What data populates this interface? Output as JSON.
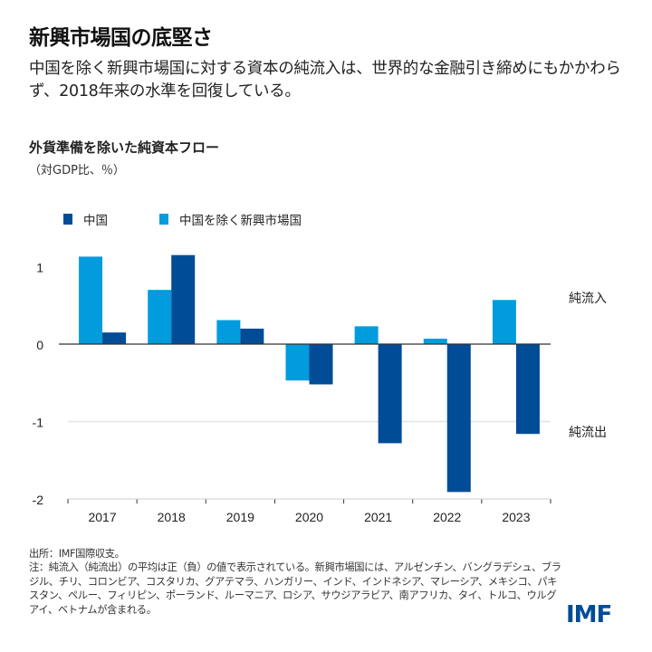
{
  "title": "新興市場国の底堅さ",
  "subtitle": "中国を除く新興市場国に対する資本の純流入は、世界的な金融引き締めにもかかわらず、2018年来の水準を回復している。",
  "chart_data": {
    "type": "bar",
    "title": "外貨準備を除いた純資本フロー",
    "unit": "（対GDP比、％）",
    "categories": [
      "2017",
      "2018",
      "2019",
      "2020",
      "2021",
      "2022",
      "2023"
    ],
    "series": [
      {
        "name": "中国を除く新興市場国",
        "color": "#009cde",
        "values": [
          1.13,
          0.7,
          0.31,
          -0.47,
          0.23,
          0.07,
          0.57
        ]
      },
      {
        "name": "中国",
        "color": "#004c97",
        "values": [
          0.15,
          1.15,
          0.2,
          -0.52,
          -1.28,
          -1.91,
          -1.16
        ]
      }
    ],
    "yticks": [
      "1",
      "0",
      "-1",
      "-2"
    ],
    "ylim": [
      -2,
      1.3
    ],
    "annotations": {
      "inflow": "純流入",
      "outflow": "純流出"
    },
    "grid": true
  },
  "legend": {
    "china": "中国",
    "em_ex_china": "中国を除く新興市場国"
  },
  "source": "出所：IMF国際収支。",
  "note": "注：純流入（純流出）の平均は正（負）の値で表示されている。新興市場国には、アルゼンチン、バングラデシュ、ブラジル、チリ、コロンビア、コスタリカ、グアテマラ、ハンガリー、インド、インドネシア、マレーシア、メキシコ、パキスタン、ペルー、フィリピン、ポーランド、ルーマニア、ロシア、サウジアラビア、南アフリカ、タイ、トルコ、ウルグアイ、ベトナムが含まれる。",
  "logo": "IMF"
}
